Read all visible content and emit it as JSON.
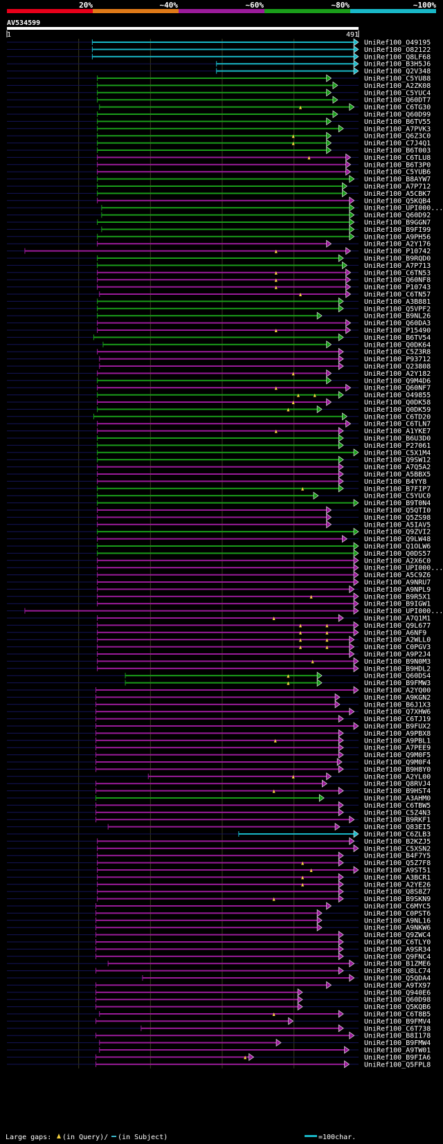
{
  "chart_data": {
    "type": "alignment",
    "query": {
      "name": "AV534599",
      "start_label": "1",
      "end_label": "491",
      "length": 491
    },
    "identity_scale": {
      "ticks": [
        "20%",
        "~40%",
        "~60%",
        "~80%",
        "~100%"
      ],
      "colors": [
        "#e8001a",
        "#e07a18",
        "#9b1b9b",
        "#1a9e1a",
        "#19b8c8"
      ]
    },
    "legend": {
      "gaps_label": "Large gaps:",
      "query_gap": "(in Query)/",
      "subject_gap": "(in Subject)",
      "scale_label": "=100char."
    },
    "hits": [
      {
        "name": "UniRef100_O49195",
        "s": 120,
        "e": 491,
        "c": 4
      },
      {
        "name": "UniRef100_O82122",
        "s": 120,
        "e": 491,
        "c": 4
      },
      {
        "name": "UniRef100_Q8LF68",
        "s": 120,
        "e": 491,
        "c": 4
      },
      {
        "name": "UniRef100_B3H5J6",
        "s": 293,
        "e": 491,
        "c": 4
      },
      {
        "name": "UniRef100_Q2V348",
        "s": 293,
        "e": 491,
        "c": 4
      },
      {
        "name": "UniRef100_C5YU88",
        "s": 127,
        "e": 453,
        "c": 3
      },
      {
        "name": "UniRef100_A2ZK08",
        "s": 127,
        "e": 462,
        "c": 3
      },
      {
        "name": "UniRef100_C5YUC4",
        "s": 127,
        "e": 453,
        "c": 3
      },
      {
        "name": "UniRef100_Q60DT7",
        "s": 127,
        "e": 462,
        "c": 3
      },
      {
        "name": "UniRef100_C6TG30",
        "s": 130,
        "e": 485,
        "c": 3,
        "g": [
          410
        ]
      },
      {
        "name": "UniRef100_Q60D99",
        "s": 127,
        "e": 462,
        "c": 3
      },
      {
        "name": "UniRef100_B6TV55",
        "s": 127,
        "e": 453,
        "c": 3
      },
      {
        "name": "UniRef100_A7PVK3",
        "s": 127,
        "e": 470,
        "c": 3
      },
      {
        "name": "UniRef100_Q6Z3C0",
        "s": 127,
        "e": 453,
        "c": 3,
        "g": [
          400
        ]
      },
      {
        "name": "UniRef100_C7J4Q1",
        "s": 127,
        "e": 453,
        "c": 3,
        "g": [
          400
        ]
      },
      {
        "name": "UniRef100_B6T003",
        "s": 127,
        "e": 453,
        "c": 3
      },
      {
        "name": "UniRef100_C6TLU8",
        "s": 127,
        "e": 480,
        "c": 2,
        "g": [
          422
        ]
      },
      {
        "name": "UniRef100_B6T3P0",
        "s": 127,
        "e": 480,
        "c": 2
      },
      {
        "name": "UniRef100_C5YUB6",
        "s": 127,
        "e": 480,
        "c": 2
      },
      {
        "name": "UniRef100_B8AYW7",
        "s": 127,
        "e": 485,
        "c": 3
      },
      {
        "name": "UniRef100_A7P712",
        "s": 127,
        "e": 475,
        "c": 3
      },
      {
        "name": "UniRef100_A5CBK7",
        "s": 127,
        "e": 475,
        "c": 3
      },
      {
        "name": "UniRef100_Q5KQB4",
        "s": 127,
        "e": 485,
        "c": 2
      },
      {
        "name": "UniRef100_UPI000...",
        "s": 133,
        "e": 485,
        "c": 3
      },
      {
        "name": "UniRef100_Q60D92",
        "s": 133,
        "e": 485,
        "c": 3
      },
      {
        "name": "UniRef100_B9GGN7",
        "s": 127,
        "e": 485,
        "c": 3
      },
      {
        "name": "UniRef100_B9FI99",
        "s": 133,
        "e": 485,
        "c": 3
      },
      {
        "name": "UniRef100_A9PH56",
        "s": 127,
        "e": 485,
        "c": 3
      },
      {
        "name": "UniRef100_A2Y176",
        "s": 127,
        "e": 453,
        "c": 2
      },
      {
        "name": "UniRef100_P10742",
        "s": 26,
        "e": 480,
        "c": 2,
        "g": [
          376
        ]
      },
      {
        "name": "UniRef100_B9RQD0",
        "s": 127,
        "e": 470,
        "c": 3
      },
      {
        "name": "UniRef100_A7P713",
        "s": 127,
        "e": 475,
        "c": 3
      },
      {
        "name": "UniRef100_C6TN53",
        "s": 127,
        "e": 480,
        "c": 2,
        "g": [
          376
        ]
      },
      {
        "name": "UniRef100_Q60NF8",
        "s": 127,
        "e": 480,
        "c": 2,
        "g": [
          376
        ]
      },
      {
        "name": "UniRef100_P10743",
        "s": 127,
        "e": 480,
        "c": 2,
        "g": [
          376
        ]
      },
      {
        "name": "UniRef100_C6TN57",
        "s": 130,
        "e": 480,
        "c": 2,
        "g": [
          410
        ]
      },
      {
        "name": "UniRef100_A3B881",
        "s": 127,
        "e": 470,
        "c": 3
      },
      {
        "name": "UniRef100_Q5VPF2",
        "s": 127,
        "e": 470,
        "c": 3
      },
      {
        "name": "UniRef100_B9NL26",
        "s": 127,
        "e": 440,
        "c": 3
      },
      {
        "name": "UniRef100_Q60DA3",
        "s": 127,
        "e": 480,
        "c": 2
      },
      {
        "name": "UniRef100_P15490",
        "s": 127,
        "e": 480,
        "c": 2,
        "g": [
          376
        ]
      },
      {
        "name": "UniRef100_B6TV54",
        "s": 122,
        "e": 470,
        "c": 3
      },
      {
        "name": "UniRef100_Q0DK64",
        "s": 135,
        "e": 453,
        "c": 3
      },
      {
        "name": "UniRef100_C5Z3R8",
        "s": 127,
        "e": 470,
        "c": 2
      },
      {
        "name": "UniRef100_P93712",
        "s": 130,
        "e": 470,
        "c": 2
      },
      {
        "name": "UniRef100_Q23808",
        "s": 130,
        "e": 470,
        "c": 2
      },
      {
        "name": "UniRef100_A2Y182",
        "s": 127,
        "e": 453,
        "c": 2,
        "g": [
          400
        ]
      },
      {
        "name": "UniRef100_Q9M4D6",
        "s": 127,
        "e": 453,
        "c": 3
      },
      {
        "name": "UniRef100_Q60NF7",
        "s": 127,
        "e": 480,
        "c": 2,
        "g": [
          376
        ]
      },
      {
        "name": "UniRef100_O49855",
        "s": 127,
        "e": 470,
        "c": 3,
        "g": [
          407,
          430
        ]
      },
      {
        "name": "UniRef100_Q0DK58",
        "s": 127,
        "e": 453,
        "c": 2,
        "g": [
          400
        ]
      },
      {
        "name": "UniRef100_Q0DK59",
        "s": 127,
        "e": 440,
        "c": 3,
        "g": [
          393
        ]
      },
      {
        "name": "UniRef100_C6TD20",
        "s": 122,
        "e": 475,
        "c": 3
      },
      {
        "name": "UniRef100_C6TLN7",
        "s": 127,
        "e": 480,
        "c": 2
      },
      {
        "name": "UniRef100_A1YKE7",
        "s": 127,
        "e": 470,
        "c": 2,
        "g": [
          376
        ]
      },
      {
        "name": "UniRef100_B6U3D0",
        "s": 127,
        "e": 470,
        "c": 3
      },
      {
        "name": "UniRef100_P27061",
        "s": 127,
        "e": 470,
        "c": 3
      },
      {
        "name": "UniRef100_C5X1M4",
        "s": 127,
        "e": 491,
        "c": 3
      },
      {
        "name": "UniRef100_Q9SW12",
        "s": 127,
        "e": 470,
        "c": 3
      },
      {
        "name": "UniRef100_A7Q5A2",
        "s": 127,
        "e": 470,
        "c": 2
      },
      {
        "name": "UniRef100_A5BBX5",
        "s": 127,
        "e": 470,
        "c": 2
      },
      {
        "name": "UniRef100_B4YY8",
        "s": 127,
        "e": 470,
        "c": 2
      },
      {
        "name": "UniRef100_B7FIP7",
        "s": 127,
        "e": 470,
        "c": 3,
        "g": [
          413
        ]
      },
      {
        "name": "UniRef100_C5YUC0",
        "s": 127,
        "e": 435,
        "c": 3
      },
      {
        "name": "UniRef100_B9T0N4",
        "s": 127,
        "e": 491,
        "c": 3
      },
      {
        "name": "UniRef100_Q5QTI0",
        "s": 127,
        "e": 453,
        "c": 2
      },
      {
        "name": "UniRef100_Q5ZS98",
        "s": 127,
        "e": 453,
        "c": 2
      },
      {
        "name": "UniRef100_A5IAV5",
        "s": 127,
        "e": 453,
        "c": 2
      },
      {
        "name": "UniRef100_Q9ZVI2",
        "s": 127,
        "e": 491,
        "c": 3
      },
      {
        "name": "UniRef100_Q9LW48",
        "s": 127,
        "e": 475,
        "c": 2
      },
      {
        "name": "UniRef100_Q1OLW6",
        "s": 127,
        "e": 491,
        "c": 3
      },
      {
        "name": "UniRef100_Q0DS57",
        "s": 127,
        "e": 491,
        "c": 3
      },
      {
        "name": "UniRef100_A2X6C0",
        "s": 127,
        "e": 491,
        "c": 2
      },
      {
        "name": "UniRef100_UPI000...",
        "s": 127,
        "e": 491,
        "c": 2
      },
      {
        "name": "UniRef100_A5C9Z6",
        "s": 127,
        "e": 491,
        "c": 2
      },
      {
        "name": "UniRef100_A9NRU7",
        "s": 127,
        "e": 491,
        "c": 2
      },
      {
        "name": "UniRef100_A9NPL9",
        "s": 127,
        "e": 485,
        "c": 2
      },
      {
        "name": "UniRef100_B9R5X1",
        "s": 127,
        "e": 491,
        "c": 2,
        "g": [
          425
        ]
      },
      {
        "name": "UniRef100_B9IGW1",
        "s": 127,
        "e": 491,
        "c": 2
      },
      {
        "name": "UniRef100_UPI000...",
        "s": 26,
        "e": 491,
        "c": 2
      },
      {
        "name": "UniRef100_A7Q1M1",
        "s": 127,
        "e": 470,
        "c": 2,
        "g": [
          373
        ]
      },
      {
        "name": "UniRef100_Q9L677",
        "s": 127,
        "e": 491,
        "c": 2,
        "g": [
          410,
          447
        ]
      },
      {
        "name": "UniRef100_A6NF9",
        "s": 127,
        "e": 491,
        "c": 2,
        "g": [
          410,
          447
        ]
      },
      {
        "name": "UniRef100_A2WLL0",
        "s": 127,
        "e": 485,
        "c": 2,
        "g": [
          410,
          447
        ]
      },
      {
        "name": "UniRef100_C0PGV3",
        "s": 127,
        "e": 485,
        "c": 2,
        "g": [
          410,
          447
        ]
      },
      {
        "name": "UniRef100_A9P2J4",
        "s": 127,
        "e": 485,
        "c": 2
      },
      {
        "name": "UniRef100_B9N0M3",
        "s": 127,
        "e": 491,
        "c": 2,
        "g": [
          427
        ]
      },
      {
        "name": "UniRef100_B9HDL2",
        "s": 127,
        "e": 491,
        "c": 2
      },
      {
        "name": "UniRef100_Q60DS4",
        "s": 166,
        "e": 440,
        "c": 3,
        "g": [
          393
        ]
      },
      {
        "name": "UniRef100_B9FMW3",
        "s": 166,
        "e": 440,
        "c": 3,
        "g": [
          393
        ]
      },
      {
        "name": "UniRef100_A2YQ00",
        "s": 125,
        "e": 491,
        "c": 2
      },
      {
        "name": "UniRef100_A9KGN2",
        "s": 125,
        "e": 465,
        "c": 2
      },
      {
        "name": "UniRef100_B6J1X3",
        "s": 125,
        "e": 465,
        "c": 2
      },
      {
        "name": "UniRef100_Q7XHW6",
        "s": 125,
        "e": 485,
        "c": 2
      },
      {
        "name": "UniRef100_C6TJ19",
        "s": 125,
        "e": 470,
        "c": 2
      },
      {
        "name": "UniRef100_B9FUX2",
        "s": 125,
        "e": 491,
        "c": 2
      },
      {
        "name": "UniRef100_A9PBX8",
        "s": 125,
        "e": 470,
        "c": 2
      },
      {
        "name": "UniRef100_A9PBL1",
        "s": 125,
        "e": 470,
        "c": 2,
        "g": [
          375
        ]
      },
      {
        "name": "UniRef100_A7PEE9",
        "s": 125,
        "e": 470,
        "c": 2
      },
      {
        "name": "UniRef100_Q9M0F5",
        "s": 125,
        "e": 470,
        "c": 2
      },
      {
        "name": "UniRef100_Q9M0F4",
        "s": 125,
        "e": 468,
        "c": 2
      },
      {
        "name": "UniRef100_B9H8Y0",
        "s": 125,
        "e": 470,
        "c": 2
      },
      {
        "name": "UniRef100_A2YL00",
        "s": 198,
        "e": 453,
        "c": 2,
        "g": [
          400
        ]
      },
      {
        "name": "UniRef100_Q8RVJ4",
        "s": 125,
        "e": 447,
        "c": 2
      },
      {
        "name": "UniRef100_B9HST4",
        "s": 125,
        "e": 470,
        "c": 2,
        "g": [
          373
        ]
      },
      {
        "name": "UniRef100_A3AHM0",
        "s": 125,
        "e": 443,
        "c": 3
      },
      {
        "name": "UniRef100_C6TBW5",
        "s": 125,
        "e": 470,
        "c": 2
      },
      {
        "name": "UniRef100_C5Z4N3",
        "s": 125,
        "e": 470,
        "c": 2
      },
      {
        "name": "UniRef100_B9RKF1",
        "s": 125,
        "e": 485,
        "c": 2
      },
      {
        "name": "UniRef100_Q83EI5",
        "s": 142,
        "e": 465,
        "c": 2
      },
      {
        "name": "UniRef100_C6ZLB3",
        "s": 324,
        "e": 491,
        "c": 4
      },
      {
        "name": "UniRef100_B2KZJ5",
        "s": 127,
        "e": 485,
        "c": 2
      },
      {
        "name": "UniRef100_C5XSN2",
        "s": 127,
        "e": 491,
        "c": 2
      },
      {
        "name": "UniRef100_B4F7Y5",
        "s": 127,
        "e": 470,
        "c": 2
      },
      {
        "name": "UniRef100_Q5Z7F8",
        "s": 127,
        "e": 470,
        "c": 2,
        "g": [
          413
        ]
      },
      {
        "name": "UniRef100_A9ST51",
        "s": 127,
        "e": 491,
        "c": 2,
        "g": [
          425
        ]
      },
      {
        "name": "UniRef100_A3BCR1",
        "s": 127,
        "e": 470,
        "c": 2,
        "g": [
          413
        ]
      },
      {
        "name": "UniRef100_A2YE26",
        "s": 127,
        "e": 470,
        "c": 2,
        "g": [
          413
        ]
      },
      {
        "name": "UniRef100_Q8S8Z7",
        "s": 127,
        "e": 470,
        "c": 2
      },
      {
        "name": "UniRef100_B9SKN9",
        "s": 127,
        "e": 470,
        "c": 2,
        "g": [
          373
        ]
      },
      {
        "name": "UniRef100_C6MYC5",
        "s": 125,
        "e": 453,
        "c": 2
      },
      {
        "name": "UniRef100_C0PST6",
        "s": 125,
        "e": 440,
        "c": 2
      },
      {
        "name": "UniRef100_A9NL16",
        "s": 125,
        "e": 440,
        "c": 2
      },
      {
        "name": "UniRef100_A9NKW6",
        "s": 125,
        "e": 440,
        "c": 2
      },
      {
        "name": "UniRef100_Q9ZWC4",
        "s": 125,
        "e": 470,
        "c": 2
      },
      {
        "name": "UniRef100_C6TLY0",
        "s": 125,
        "e": 470,
        "c": 2
      },
      {
        "name": "UniRef100_A9SR34",
        "s": 125,
        "e": 470,
        "c": 2
      },
      {
        "name": "UniRef100_Q9FNC4",
        "s": 125,
        "e": 470,
        "c": 2
      },
      {
        "name": "UniRef100_B1ZME6",
        "s": 142,
        "e": 485,
        "c": 2
      },
      {
        "name": "UniRef100_Q8LC74",
        "s": 125,
        "e": 470,
        "c": 2
      },
      {
        "name": "UniRef100_Q5QDA4",
        "s": 190,
        "e": 485,
        "c": 2
      },
      {
        "name": "UniRef100_A9TX97",
        "s": 125,
        "e": 453,
        "c": 2
      },
      {
        "name": "UniRef100_Q940E6",
        "s": 125,
        "e": 413,
        "c": 2
      },
      {
        "name": "UniRef100_Q60D98",
        "s": 125,
        "e": 413,
        "c": 2
      },
      {
        "name": "UniRef100_Q5KQB6",
        "s": 125,
        "e": 413,
        "c": 2
      },
      {
        "name": "UniRef100_C6T8B5",
        "s": 130,
        "e": 470,
        "c": 2,
        "g": [
          373
        ]
      },
      {
        "name": "UniRef100_B9FMV4",
        "s": 125,
        "e": 400,
        "c": 2
      },
      {
        "name": "UniRef100_C6T738",
        "s": 188,
        "e": 470,
        "c": 2
      },
      {
        "name": "UniRef100_B8I178",
        "s": 125,
        "e": 485,
        "c": 2
      },
      {
        "name": "UniRef100_B9FMW4",
        "s": 130,
        "e": 383,
        "c": 2
      },
      {
        "name": "UniRef100_A9TW01",
        "s": 130,
        "e": 478,
        "c": 2
      },
      {
        "name": "UniRef100_B9FIA6",
        "s": 125,
        "e": 345,
        "c": 2,
        "g": [
          333
        ]
      },
      {
        "name": "UniRef100_Q5FPL8",
        "s": 125,
        "e": 478,
        "c": 2
      }
    ]
  }
}
